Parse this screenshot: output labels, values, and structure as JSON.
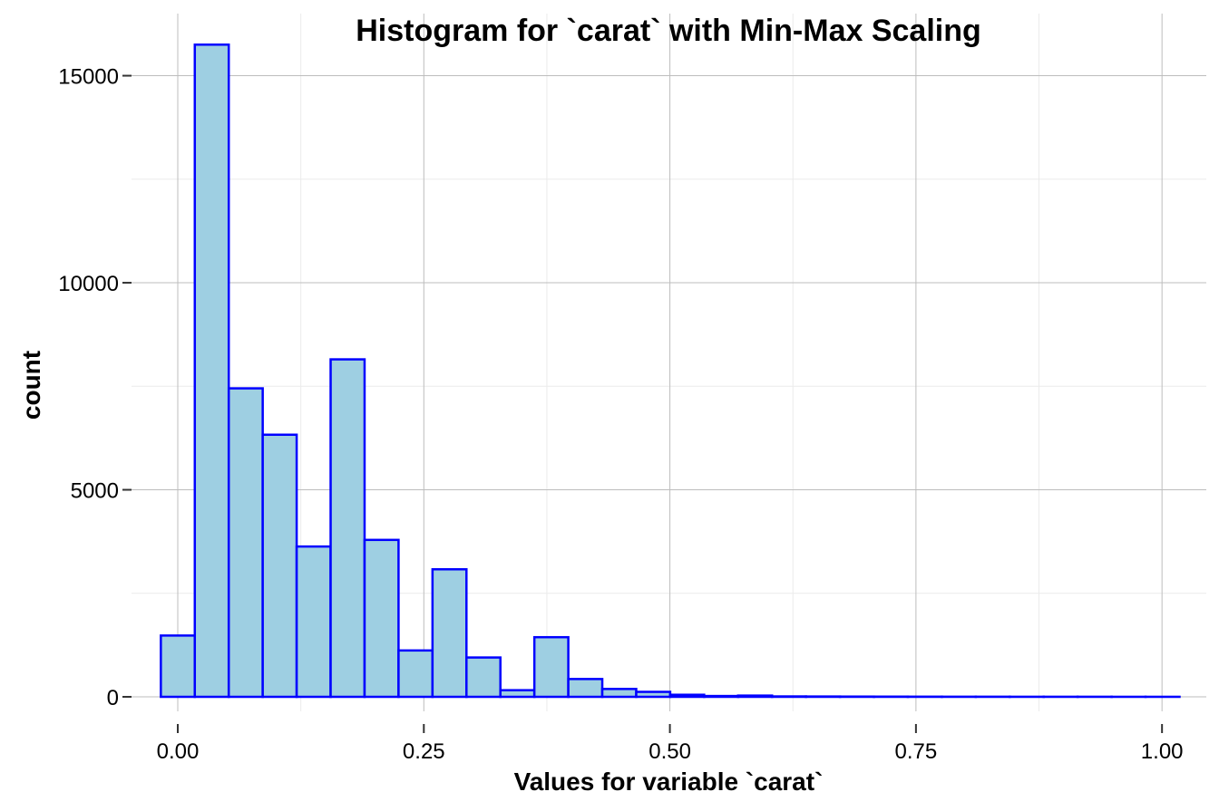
{
  "chart_data": {
    "type": "bar",
    "title": "Histogram for `carat` with Min-Max Scaling",
    "xlabel": "Values for variable `carat`",
    "ylabel": "count",
    "bin_width": 0.0345,
    "bin_start": -0.0172,
    "values": [
      1480,
      15750,
      7450,
      6330,
      3630,
      8150,
      3790,
      1120,
      3080,
      950,
      160,
      1440,
      430,
      190,
      120,
      50,
      20,
      30,
      10,
      8,
      6,
      5,
      4,
      3,
      3,
      2,
      2,
      2,
      1,
      1
    ],
    "xlim": [
      -0.047,
      1.045
    ],
    "ylim": [
      -350,
      16500
    ],
    "x_ticks": [
      0.0,
      0.25,
      0.5,
      0.75,
      1.0
    ],
    "x_tick_labels": [
      "0.00",
      "0.25",
      "0.50",
      "0.75",
      "1.00"
    ],
    "y_ticks": [
      0,
      5000,
      10000,
      15000
    ],
    "y_tick_labels": [
      "0",
      "5000",
      "10000",
      "15000"
    ],
    "x_minor_ticks": [
      0.125,
      0.375,
      0.625,
      0.875
    ],
    "y_minor_ticks": [
      2500,
      7500,
      12500
    ],
    "grid": true,
    "colors": {
      "bar_fill": "#9ecfe2",
      "bar_outline": "#0000ff"
    }
  }
}
